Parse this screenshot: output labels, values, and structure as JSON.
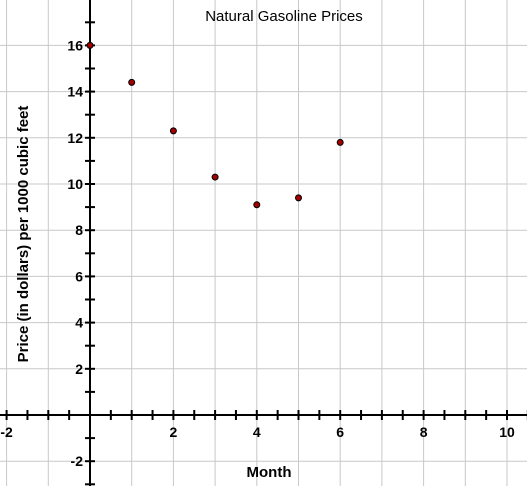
{
  "chart_data": {
    "type": "scatter",
    "title": "Natural Gasoline Prices",
    "xlabel": "Month",
    "ylabel": "Price (in dollars) per 1000 cubic feet",
    "xlim": [
      -2,
      10.5
    ],
    "ylim": [
      -3,
      17.5
    ],
    "x_ticks": [
      -2,
      2,
      4,
      6,
      8,
      10
    ],
    "y_ticks": [
      -2,
      2,
      4,
      6,
      8,
      10,
      12,
      14,
      16
    ],
    "grid": true,
    "x": [
      0,
      1,
      2,
      3,
      4,
      5,
      6
    ],
    "y": [
      16.0,
      14.4,
      12.3,
      10.3,
      9.1,
      9.4,
      11.8
    ],
    "colors": {
      "point_fill": "#a00000",
      "point_stroke": "#000000",
      "grid": "#c8c8c8",
      "axis": "#000000"
    }
  }
}
